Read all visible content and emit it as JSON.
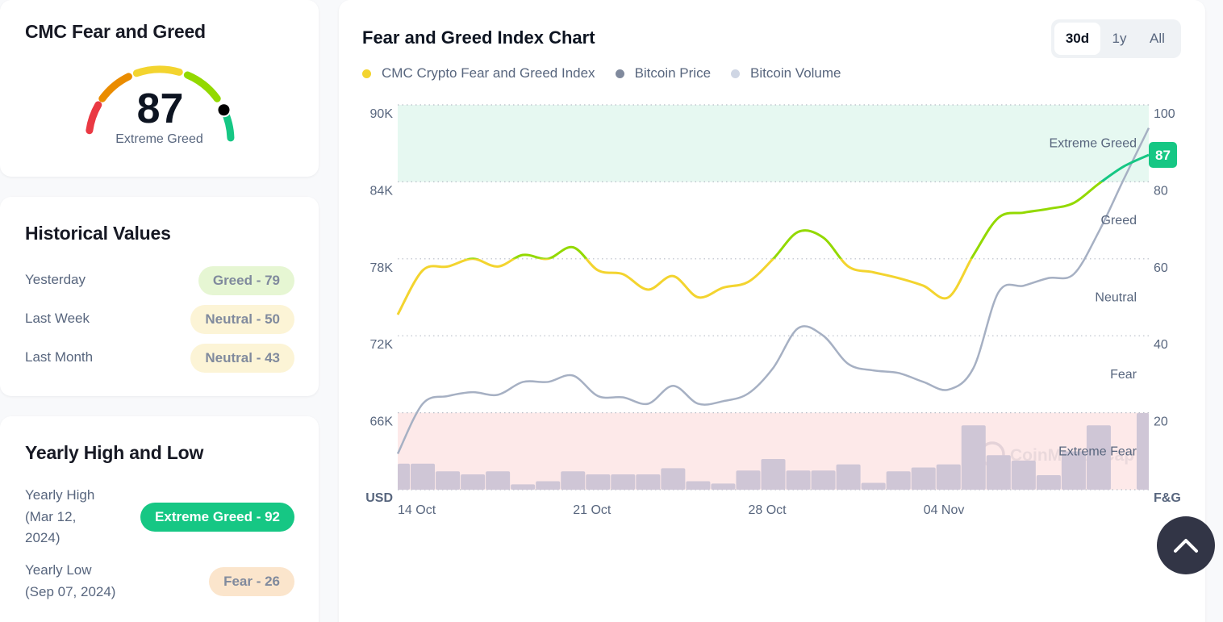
{
  "gauge": {
    "title": "CMC Fear and Greed",
    "value": "87",
    "value_number": 87,
    "label": "Extreme Greed",
    "segment_colors": [
      "#ea3943",
      "#ea8c00",
      "#f3d42f",
      "#93d900",
      "#16c784"
    ]
  },
  "historical": {
    "title": "Historical Values",
    "rows": [
      {
        "label": "Yesterday",
        "value": "Greed - 79",
        "bg": "#e6f6d3"
      },
      {
        "label": "Last Week",
        "value": "Neutral - 50",
        "bg": "#fcf4d6"
      },
      {
        "label": "Last Month",
        "value": "Neutral - 43",
        "bg": "#fcf4d6"
      }
    ]
  },
  "yearly": {
    "title": "Yearly High and Low",
    "high": {
      "label_line1": "Yearly High",
      "label_line2": "(Mar 12,",
      "label_line3": "2024)",
      "value": "Extreme Greed - 92",
      "bg": "#16c784",
      "fg": "#ffffff"
    },
    "low": {
      "label_line1": "Yearly Low",
      "label_line2": "(Sep 07, 2024)",
      "value": "Fear - 26",
      "bg": "#fbe5cc",
      "fg": "#808a9d"
    }
  },
  "chart_panel": {
    "title": "Fear and Greed Index Chart",
    "ranges": [
      "30d",
      "1y",
      "All"
    ],
    "active_range": "30d",
    "legend": [
      {
        "label": "CMC Crypto Fear and Greed Index",
        "color": "#f3d42f"
      },
      {
        "label": "Bitcoin Price",
        "color": "#808a9d"
      },
      {
        "label": "Bitcoin Volume",
        "color": "#cfd6e4"
      }
    ],
    "watermark": "CoinMarketCap"
  },
  "chart_data": {
    "type": "line",
    "title": "Fear and Greed Index Chart",
    "x_tick_labels": [
      "14 Oct",
      "21 Oct",
      "28 Oct",
      "04 Nov"
    ],
    "x_tick_day_index": [
      0,
      7,
      14,
      21
    ],
    "x_days": 31,
    "left_axis": {
      "label": "USD",
      "ticks": [
        "90K",
        "84K",
        "78K",
        "72K",
        "66K"
      ],
      "range": [
        60000,
        90000
      ]
    },
    "right_axis": {
      "label": "F&G",
      "ticks": [
        "100",
        "80",
        "60",
        "40",
        "20"
      ],
      "range": [
        0,
        100
      ]
    },
    "zones": [
      {
        "name": "Extreme Greed",
        "from": 80,
        "to": 100,
        "color": "#e6f8f1"
      },
      {
        "name": "Greed",
        "from": 60,
        "to": 80
      },
      {
        "name": "Neutral",
        "from": 40,
        "to": 60
      },
      {
        "name": "Fear",
        "from": 20,
        "to": 40
      },
      {
        "name": "Extreme Fear",
        "from": 0,
        "to": 20,
        "color": "#fde9e9"
      }
    ],
    "series": [
      {
        "name": "CMC Crypto Fear and Greed Index",
        "axis": "right",
        "values": [
          45.5,
          57,
          58,
          60,
          58,
          61,
          60,
          63,
          57,
          56,
          52,
          55.5,
          50,
          52.5,
          54,
          60,
          67,
          65.5,
          58,
          56.5,
          55,
          53,
          50,
          61,
          70.7,
          72,
          73,
          74.5,
          79.5,
          84,
          87
        ]
      },
      {
        "name": "Bitcoin Price",
        "axis": "left",
        "values": [
          62800,
          66700,
          67300,
          67600,
          67400,
          68400,
          68400,
          68900,
          67300,
          67200,
          66700,
          68100,
          66700,
          66900,
          67500,
          69500,
          72600,
          72000,
          69800,
          69300,
          69100,
          68400,
          67800,
          69500,
          75400,
          75900,
          76500,
          76800,
          80100,
          84200,
          88200
        ]
      },
      {
        "name": "Bitcoin Volume",
        "axis": "relative",
        "values": [
          0.34,
          0.34,
          0.24,
          0.2,
          0.24,
          0.07,
          0.11,
          0.24,
          0.2,
          0.2,
          0.2,
          0.28,
          0.11,
          0.08,
          0.25,
          0.4,
          0.25,
          0.25,
          0.33,
          0.09,
          0.24,
          0.29,
          0.33,
          0.84,
          0.45,
          0.38,
          0.19,
          0.5,
          0.84,
          0,
          1.0
        ]
      }
    ],
    "current_value_badge": "87",
    "current_value_color": "#16c784"
  }
}
